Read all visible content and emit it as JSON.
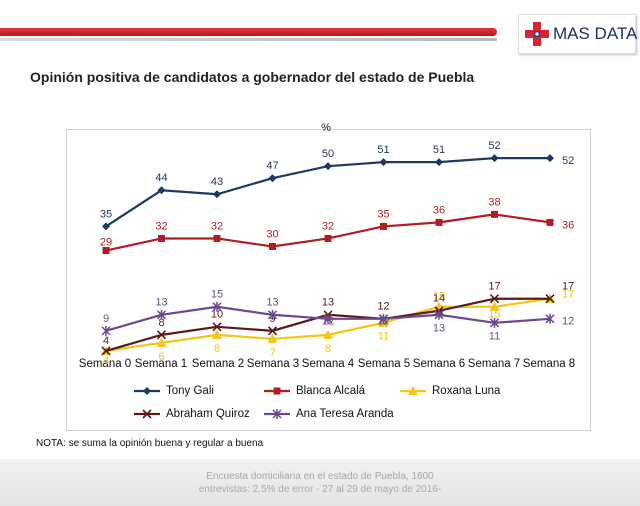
{
  "brand": {
    "name": "MAS DATA",
    "cross_colors": {
      "red": "#d9232d",
      "blue": "#2a3f8f"
    }
  },
  "title": "Opinión positiva de candidatos a gobernador del estado de Puebla",
  "note": "NOTA:  se suma la opinión buena y regular a buena",
  "footer": {
    "line1": "Encuesta domiciliaria en el estado de Puebla, 1600",
    "line2": "entrevistas: 2.5% de error - 27 al 29 de mayo de 2016-"
  },
  "chart_data": {
    "type": "line",
    "title": "Opinión positiva de candidatos a gobernador del estado de Puebla",
    "unit_label": "%",
    "categories": [
      "Semana 0",
      "Semana 1",
      "Semana 2",
      "Semana 3",
      "Semana 4",
      "Semana 5",
      "Semana 6",
      "Semana 7",
      "Semana 8"
    ],
    "ylim": [
      0,
      60
    ],
    "grid": false,
    "legend_position": "bottom",
    "series": [
      {
        "name": "Tony Gali",
        "color": "#1f3a60",
        "marker": "diamond",
        "values": [
          35,
          44,
          43,
          47,
          50,
          51,
          51,
          52,
          52
        ]
      },
      {
        "name": "Blanca Alcalá",
        "color": "#b01e23",
        "marker": "square",
        "values": [
          29,
          32,
          32,
          30,
          32,
          35,
          36,
          38,
          36
        ]
      },
      {
        "name": "Roxana Luna",
        "color": "#f5c518",
        "marker": "triangle",
        "values": [
          4,
          6,
          8,
          7,
          8,
          11,
          15,
          15,
          17
        ]
      },
      {
        "name": "Abraham Quiroz",
        "color": "#5b1a15",
        "marker": "x",
        "values": [
          4,
          8,
          10,
          9,
          13,
          12,
          14,
          17,
          17
        ]
      },
      {
        "name": "Ana Teresa Aranda",
        "color": "#6a4a8c",
        "marker": "star",
        "values": [
          9,
          13,
          15,
          13,
          12,
          12,
          13,
          11,
          12
        ]
      }
    ]
  }
}
